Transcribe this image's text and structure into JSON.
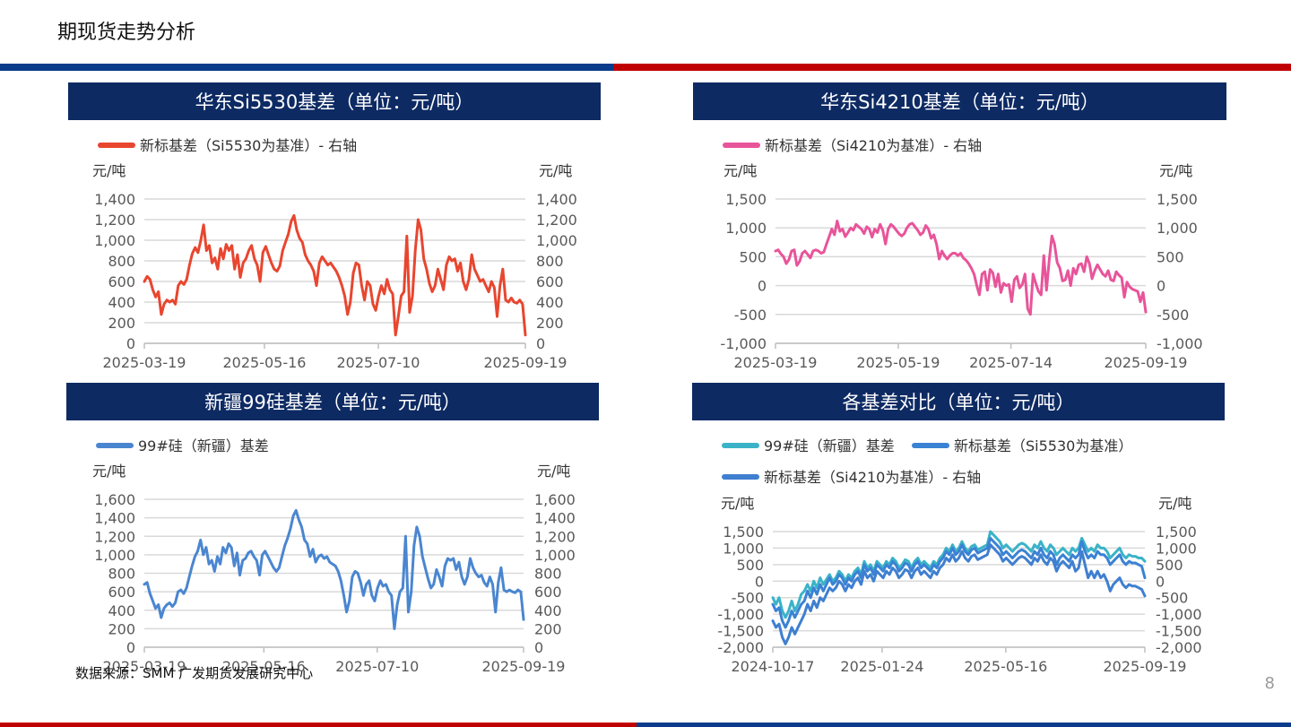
{
  "page": {
    "title": "期现货走势分析",
    "page_number": "8",
    "source": "数据来源：SMM 广发期货发展研究中心",
    "colors": {
      "top_left_bar": "#0b3c8c",
      "top_right_bar": "#c00000",
      "header_bg": "#0d2a63"
    }
  },
  "chart_data": [
    {
      "id": "c1",
      "header": "华东Si5530基差（单位：元/吨）",
      "type": "line",
      "left_unit": "元/吨",
      "right_unit": "元/吨",
      "yticks": [
        "0",
        "200",
        "400",
        "600",
        "800",
        "1,000",
        "1,200",
        "1,400"
      ],
      "ylim": [
        0,
        1400
      ],
      "x_tick_labels": [
        "2025-03-19",
        "2025-05-16",
        "2025-07-10",
        "2025-09-19"
      ],
      "x_range": [
        "2025-03-19",
        "2025-09-19"
      ],
      "grid": true,
      "legend_position": "top-left",
      "series": [
        {
          "name": "新标基差（Si5530为基准）- 右轴",
          "color": "#e8462f",
          "axis": "right",
          "values": [
            600,
            650,
            620,
            520,
            450,
            500,
            280,
            380,
            420,
            400,
            420,
            380,
            560,
            600,
            570,
            620,
            760,
            870,
            930,
            880,
            1000,
            1150,
            900,
            950,
            780,
            830,
            720,
            920,
            820,
            960,
            900,
            950,
            720,
            860,
            640,
            780,
            820,
            900,
            950,
            820,
            760,
            600,
            880,
            940,
            860,
            780,
            720,
            700,
            750,
            900,
            980,
            1060,
            1180,
            1240,
            1100,
            1020,
            980,
            860,
            800,
            760,
            700,
            560,
            780,
            840,
            800,
            760,
            780,
            740,
            700,
            640,
            560,
            460,
            280,
            400,
            680,
            780,
            760,
            560,
            420,
            600,
            560,
            380,
            320,
            460,
            560,
            480,
            620,
            520,
            480,
            80,
            260,
            460,
            500,
            1040,
            300,
            460,
            900,
            1200,
            1100,
            820,
            720,
            580,
            500,
            560,
            720,
            620,
            520,
            760,
            840,
            800,
            820,
            700,
            780,
            600,
            520,
            620,
            860,
            720,
            660,
            600,
            620,
            560,
            500,
            600,
            540,
            260,
            560,
            720,
            420,
            400,
            440,
            400,
            390,
            420,
            380,
            80
          ]
        }
      ]
    },
    {
      "id": "c2",
      "header": "华东Si4210基差（单位：元/吨）",
      "type": "line",
      "left_unit": "元/吨",
      "right_unit": "元/吨",
      "yticks": [
        "-1,000",
        "-500",
        "0",
        "500",
        "1,000",
        "1,500"
      ],
      "ylim": [
        -1000,
        1500
      ],
      "x_tick_labels": [
        "2025-03-19",
        "2025-05-19",
        "2025-07-14",
        "2025-09-19"
      ],
      "x_range": [
        "2025-03-19",
        "2025-09-19"
      ],
      "grid": true,
      "legend_position": "top-left",
      "series": [
        {
          "name": "新标基差（Si4210为基准）- 右轴",
          "color": "#e8549a",
          "axis": "right",
          "values": [
            600,
            620,
            550,
            500,
            380,
            450,
            600,
            620,
            350,
            420,
            560,
            600,
            540,
            480,
            600,
            620,
            600,
            560,
            580,
            720,
            850,
            980,
            880,
            1120,
            940,
            980,
            850,
            920,
            1000,
            960,
            1060,
            1020,
            980,
            900,
            1020,
            980,
            840,
            980,
            920,
            1060,
            960,
            720,
            980,
            1060,
            1020,
            960,
            900,
            860,
            900,
            1000,
            1060,
            1080,
            1020,
            960,
            880,
            920,
            1040,
            980,
            820,
            880,
            720,
            460,
            600,
            520,
            460,
            520,
            560,
            560,
            520,
            560,
            480,
            440,
            380,
            300,
            200,
            0,
            -160,
            200,
            240,
            -80,
            280,
            220,
            -20,
            200,
            -120,
            40,
            0,
            20,
            -280,
            100,
            160,
            -40,
            20,
            200,
            -400,
            -500,
            200,
            40,
            -100,
            -160,
            520,
            -80,
            440,
            860,
            720,
            400,
            300,
            80,
            100,
            260,
            0,
            300,
            200,
            360,
            380,
            240,
            500,
            380,
            120,
            260,
            360,
            280,
            200,
            160,
            260,
            100,
            80,
            240,
            180,
            140,
            -200,
            60,
            -20,
            -60,
            -80,
            -100,
            -280,
            -120,
            -460
          ]
        }
      ]
    },
    {
      "id": "c3",
      "header": "新疆99硅基差（单位：元/吨）",
      "type": "line",
      "left_unit": "元/吨",
      "right_unit": "元/吨",
      "yticks": [
        "0",
        "200",
        "400",
        "600",
        "800",
        "1,000",
        "1,200",
        "1,400",
        "1,600"
      ],
      "ylim": [
        0,
        1600
      ],
      "x_tick_labels": [
        "2025-03-19",
        "2025-05-16",
        "2025-07-10",
        "2025-09-19"
      ],
      "x_range": [
        "2025-03-19",
        "2025-09-19"
      ],
      "grid": true,
      "legend_position": "top-left",
      "series": [
        {
          "name": "99#硅（新疆）基差",
          "color": "#4a86d0",
          "axis": "left",
          "values": [
            680,
            700,
            580,
            500,
            420,
            460,
            320,
            420,
            460,
            480,
            440,
            480,
            600,
            620,
            580,
            640,
            760,
            880,
            980,
            1040,
            1160,
            1000,
            1080,
            900,
            940,
            820,
            980,
            900,
            1080,
            1020,
            1120,
            1080,
            880,
            1020,
            780,
            940,
            960,
            1020,
            1040,
            980,
            940,
            780,
            1000,
            1040,
            980,
            920,
            860,
            820,
            860,
            980,
            1100,
            1180,
            1280,
            1420,
            1480,
            1380,
            1300,
            1160,
            1120,
            980,
            1060,
            920,
            980,
            1000,
            960,
            980,
            920,
            900,
            880,
            820,
            720,
            560,
            380,
            500,
            760,
            820,
            800,
            700,
            560,
            680,
            720,
            560,
            500,
            640,
            720,
            660,
            680,
            600,
            560,
            200,
            460,
            600,
            640,
            1200,
            380,
            600,
            1100,
            1300,
            1200,
            980,
            860,
            740,
            640,
            680,
            840,
            760,
            660,
            880,
            960,
            940,
            960,
            840,
            920,
            760,
            680,
            760,
            960,
            860,
            800,
            760,
            780,
            700,
            660,
            760,
            680,
            380,
            700,
            860,
            620,
            600,
            620,
            600,
            590,
            620,
            600,
            300
          ]
        }
      ]
    },
    {
      "id": "c4",
      "header": "各基差对比（单位：元/吨）",
      "type": "line",
      "left_unit": "元/吨",
      "right_unit": "元/吨",
      "yticks": [
        "-2,000",
        "-1,500",
        "-1,000",
        "-500",
        "0",
        "500",
        "1,000",
        "1,500"
      ],
      "ylim": [
        -2000,
        1500
      ],
      "x_tick_labels": [
        "2024-10-17",
        "2025-01-24",
        "2025-05-16",
        "2025-09-19"
      ],
      "x_range": [
        "2024-10-17",
        "2025-09-19"
      ],
      "grid": true,
      "legend_position": "top-left",
      "series": [
        {
          "name": "99#硅（新疆）基差",
          "color": "#3ab3c8",
          "axis": "left",
          "values": [
            -500,
            -700,
            -500,
            -900,
            -1100,
            -900,
            -600,
            -900,
            -700,
            -400,
            -300,
            -100,
            -300,
            0,
            -200,
            100,
            -100,
            50,
            200,
            0,
            100,
            300,
            200,
            0,
            200,
            100,
            300,
            400,
            200,
            600,
            400,
            500,
            300,
            600,
            500,
            400,
            600,
            500,
            700,
            600,
            400,
            500,
            650,
            600,
            400,
            600,
            700,
            500,
            600,
            500,
            400,
            600,
            500,
            700,
            800,
            1000,
            900,
            1100,
            900,
            1000,
            1200,
            1000,
            900,
            1050,
            1100,
            950,
            1000,
            1050,
            1100,
            1500,
            1400,
            1300,
            1200,
            1000,
            1100,
            1000,
            900,
            1000,
            1100,
            1150,
            1100,
            1000,
            900,
            1100,
            1000,
            1200,
            1000,
            900,
            1100,
            1000,
            800,
            900,
            1000,
            900,
            800,
            1000,
            900,
            1000,
            1300,
            1100,
            900,
            1000,
            900,
            1100,
            1000,
            1000,
            900,
            700,
            800,
            900,
            1000,
            800,
            700,
            800,
            750,
            750,
            700,
            700,
            600
          ]
        },
        {
          "name": "新标基差（Si5530为基准）",
          "color": "#3a82d4",
          "axis": "left",
          "values": [
            -700,
            -900,
            -800,
            -1200,
            -1400,
            -1200,
            -900,
            -1100,
            -900,
            -700,
            -600,
            -300,
            -500,
            -200,
            -400,
            -100,
            -300,
            -100,
            100,
            -100,
            0,
            200,
            100,
            -100,
            100,
            0,
            200,
            300,
            100,
            500,
            300,
            400,
            200,
            500,
            400,
            300,
            500,
            400,
            600,
            500,
            300,
            400,
            550,
            500,
            300,
            500,
            600,
            400,
            500,
            400,
            300,
            500,
            400,
            600,
            700,
            900,
            800,
            1000,
            800,
            900,
            1100,
            900,
            800,
            950,
            1000,
            850,
            900,
            950,
            1000,
            1300,
            1200,
            1100,
            1000,
            800,
            900,
            800,
            700,
            800,
            900,
            950,
            900,
            800,
            700,
            900,
            800,
            1000,
            800,
            700,
            900,
            800,
            500,
            700,
            800,
            700,
            600,
            800,
            700,
            800,
            1200,
            900,
            700,
            800,
            700,
            900,
            800,
            800,
            700,
            500,
            600,
            700,
            800,
            600,
            500,
            600,
            550,
            550,
            500,
            450,
            100
          ]
        },
        {
          "name": "新标基差（Si4210为基准）- 右轴",
          "color": "#3f7fd0",
          "axis": "right",
          "values": [
            -1200,
            -1400,
            -1300,
            -1700,
            -1900,
            -1700,
            -1400,
            -1600,
            -1400,
            -1200,
            -1000,
            -700,
            -900,
            -600,
            -800,
            -500,
            -600,
            -400,
            -200,
            -300,
            -200,
            0,
            -100,
            -300,
            -100,
            -200,
            0,
            100,
            -100,
            300,
            100,
            200,
            0,
            300,
            200,
            100,
            300,
            200,
            400,
            300,
            100,
            200,
            350,
            300,
            100,
            300,
            400,
            200,
            300,
            200,
            100,
            300,
            200,
            400,
            500,
            700,
            600,
            800,
            600,
            700,
            900,
            700,
            600,
            750,
            800,
            650,
            700,
            750,
            800,
            1100,
            1000,
            900,
            800,
            600,
            700,
            600,
            500,
            600,
            700,
            750,
            700,
            600,
            500,
            700,
            600,
            800,
            600,
            500,
            700,
            600,
            300,
            500,
            600,
            500,
            400,
            600,
            300,
            400,
            900,
            500,
            100,
            300,
            100,
            300,
            100,
            200,
            0,
            -300,
            -100,
            0,
            100,
            -100,
            -200,
            -100,
            -150,
            -150,
            -200,
            -250,
            -450
          ]
        }
      ]
    }
  ]
}
